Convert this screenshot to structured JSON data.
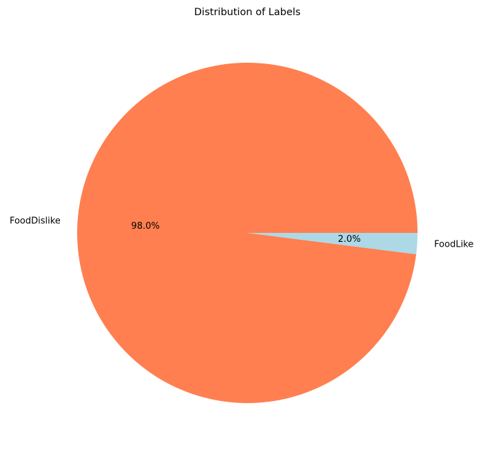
{
  "chart_data": {
    "type": "pie",
    "title": "Distribution of Labels",
    "slices": [
      {
        "label": "FoodDislike",
        "value": 98.0,
        "pct_label": "98.0%",
        "color": "#ff7f50"
      },
      {
        "label": "FoodLike",
        "value": 2.0,
        "pct_label": "2.0%",
        "color": "#add8e6"
      }
    ],
    "start_angle_deg": 0,
    "direction": "counterclockwise",
    "legend": "none"
  }
}
